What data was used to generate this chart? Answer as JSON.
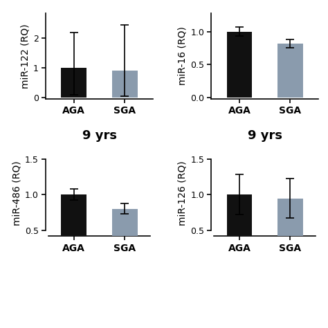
{
  "panels": [
    {
      "ylabel": "miR-122 (RQ)",
      "xlabel": "9 yrs",
      "categories": [
        "AGA",
        "SGA"
      ],
      "values": [
        1.0,
        0.9
      ],
      "errors_up": [
        1.2,
        1.55
      ],
      "errors_down": [
        0.9,
        0.85
      ],
      "colors": [
        "#111111",
        "#8a9bad"
      ],
      "ylim": [
        -0.05,
        2.85
      ],
      "yticks": [
        0,
        1,
        2
      ],
      "yticklabels": [
        "0",
        "1",
        "2"
      ],
      "spine_top_visible": false
    },
    {
      "ylabel": "miR-16 (RQ)",
      "xlabel": "9 yrs",
      "categories": [
        "AGA",
        "SGA"
      ],
      "values": [
        1.0,
        0.82
      ],
      "errors_up": [
        0.07,
        0.06
      ],
      "errors_down": [
        0.07,
        0.06
      ],
      "colors": [
        "#111111",
        "#8a9bad"
      ],
      "ylim": [
        -0.02,
        1.28
      ],
      "yticks": [
        0.0,
        0.5,
        1.0
      ],
      "yticklabels": [
        "0.0",
        "0.5",
        "1.0"
      ],
      "spine_top_visible": false
    },
    {
      "ylabel": "miR-486 (RQ)",
      "xlabel": "",
      "categories": [
        "AGA",
        "SGA"
      ],
      "values": [
        1.0,
        0.8
      ],
      "errors_up": [
        0.08,
        0.08
      ],
      "errors_down": [
        0.07,
        0.07
      ],
      "colors": [
        "#111111",
        "#8a9bad"
      ],
      "ylim": [
        0.42,
        1.62
      ],
      "yticks": [
        0.5,
        1.0,
        1.5
      ],
      "yticklabels": [
        "0.5",
        "1.0",
        "1.5"
      ],
      "spine_top_visible": false
    },
    {
      "ylabel": "miR-126 (RQ)",
      "xlabel": "",
      "categories": [
        "AGA",
        "SGA"
      ],
      "values": [
        1.0,
        0.95
      ],
      "errors_up": [
        0.28,
        0.28
      ],
      "errors_down": [
        0.28,
        0.28
      ],
      "colors": [
        "#111111",
        "#8a9bad"
      ],
      "ylim": [
        0.42,
        1.62
      ],
      "yticks": [
        0.5,
        1.0,
        1.5
      ],
      "yticklabels": [
        "0.5",
        "1.0",
        "1.5"
      ],
      "spine_top_visible": false
    }
  ],
  "background_color": "#ffffff",
  "bar_width": 0.5,
  "xlabel_fontsize": 13,
  "ylabel_fontsize": 10,
  "tick_fontsize": 9,
  "cat_fontsize": 10
}
